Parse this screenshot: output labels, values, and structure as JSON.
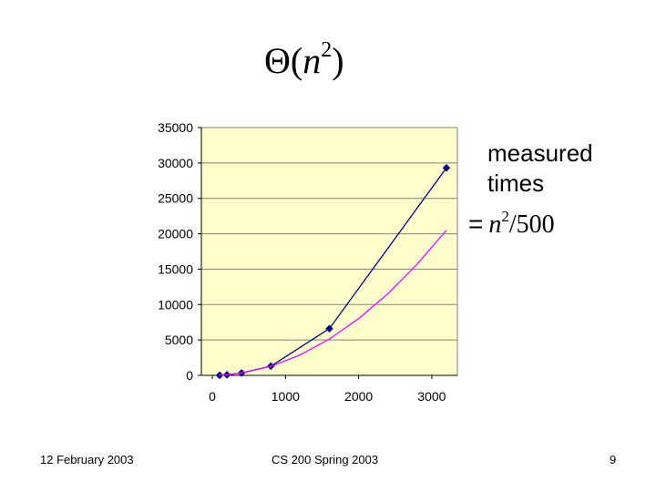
{
  "slide": {
    "title": {
      "symbol": "Θ(",
      "variable": "n",
      "exponent": "2",
      "close": ")"
    },
    "legend": {
      "measured_label": "measured\ntimes",
      "formula_prefix": "=",
      "formula_var": "n",
      "formula_exponent": "2",
      "formula_rest": "/500"
    },
    "footer": {
      "date": "12 February 2003",
      "course": "CS 200 Spring 2003",
      "page": "9"
    }
  },
  "colors": {
    "plot_background": "#FFFFCC",
    "gridline": "#808080",
    "measured_series": "#000080",
    "formula_series": "#FF00FF"
  },
  "chart_data": {
    "type": "line",
    "title": "",
    "xlabel": "",
    "ylabel": "",
    "xlim": [
      -150,
      3350
    ],
    "ylim": [
      0,
      35000
    ],
    "xticks": [
      0,
      1000,
      2000,
      3000
    ],
    "yticks": [
      0,
      5000,
      10000,
      15000,
      20000,
      25000,
      30000,
      35000
    ],
    "grid": true,
    "series": [
      {
        "key": "measured",
        "markers": true,
        "points": [
          [
            100,
            20
          ],
          [
            200,
            80
          ],
          [
            400,
            330
          ],
          [
            800,
            1300
          ],
          [
            1600,
            6600
          ],
          [
            3200,
            29300
          ]
        ]
      },
      {
        "key": "formula",
        "markers": false,
        "points": [
          [
            100,
            20
          ],
          [
            200,
            80
          ],
          [
            400,
            320
          ],
          [
            800,
            1280
          ],
          [
            1200,
            2880
          ],
          [
            1600,
            5120
          ],
          [
            2000,
            8000
          ],
          [
            2400,
            11520
          ],
          [
            2800,
            15680
          ],
          [
            3200,
            20480
          ]
        ]
      }
    ]
  }
}
